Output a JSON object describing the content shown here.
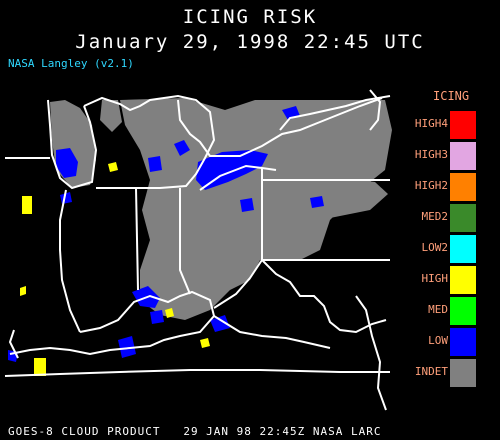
{
  "header": {
    "title": "ICING RISK",
    "datetime": "January 29, 1998 22:45 UTC",
    "version": "NASA Langley (v2.1)"
  },
  "legend": {
    "title": "ICING",
    "items": [
      {
        "label": "HIGH4",
        "color": "#ff0000"
      },
      {
        "label": "HIGH3",
        "color": "#e2a6e2"
      },
      {
        "label": "HIGH2",
        "color": "#ff8000"
      },
      {
        "label": "MED2",
        "color": "#3a8a2a"
      },
      {
        "label": "LOW2",
        "color": "#00ffff"
      },
      {
        "label": "HIGH",
        "color": "#ffff00"
      },
      {
        "label": "MED",
        "color": "#00ff00"
      },
      {
        "label": "LOW",
        "color": "#0000ff"
      },
      {
        "label": "INDET",
        "color": "#808080"
      }
    ]
  },
  "footer": {
    "text": "GOES-8 CLOUD PRODUCT   29 JAN 98 22:45Z NASA LARC"
  }
}
